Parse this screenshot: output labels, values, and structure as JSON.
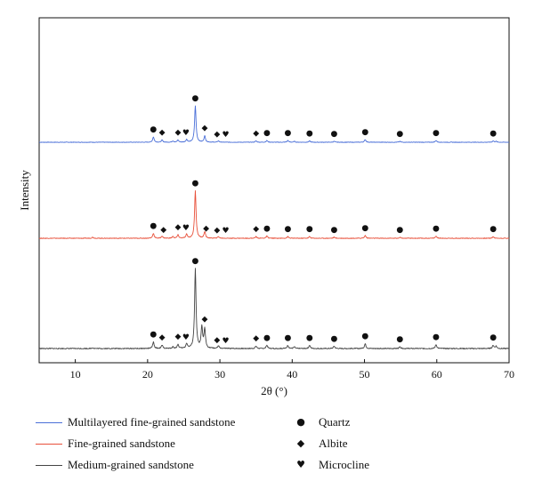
{
  "chart_data": {
    "type": "line",
    "xlabel": "2θ (°)",
    "ylabel": "Intensity",
    "xlim": [
      5,
      70
    ],
    "x_ticks": [
      10,
      20,
      30,
      40,
      50,
      60,
      70
    ],
    "y_ticks_shown": false,
    "grid": false,
    "legend_position": "bottom",
    "series": [
      {
        "name": "Multilayered fine-grained sandstone",
        "color": "#4a6fd8",
        "peaks": [
          {
            "x": 20.8,
            "h": 0.12
          },
          {
            "x": 22.0,
            "h": 0.05
          },
          {
            "x": 23.5,
            "h": 0.03
          },
          {
            "x": 24.2,
            "h": 0.05
          },
          {
            "x": 25.4,
            "h": 0.06
          },
          {
            "x": 26.6,
            "h": 0.82
          },
          {
            "x": 27.9,
            "h": 0.14
          },
          {
            "x": 29.8,
            "h": 0.03
          },
          {
            "x": 35.0,
            "h": 0.03
          },
          {
            "x": 36.5,
            "h": 0.04
          },
          {
            "x": 39.4,
            "h": 0.04
          },
          {
            "x": 40.3,
            "h": 0.02
          },
          {
            "x": 42.4,
            "h": 0.03
          },
          {
            "x": 45.8,
            "h": 0.02
          },
          {
            "x": 50.1,
            "h": 0.06
          },
          {
            "x": 54.9,
            "h": 0.02
          },
          {
            "x": 59.9,
            "h": 0.04
          },
          {
            "x": 67.8,
            "h": 0.03
          },
          {
            "x": 68.2,
            "h": 0.02
          }
        ],
        "markers": [
          {
            "x": 20.8,
            "symbol": "quartz"
          },
          {
            "x": 22.0,
            "symbol": "albite"
          },
          {
            "x": 24.2,
            "symbol": "albite"
          },
          {
            "x": 25.3,
            "symbol": "microcline"
          },
          {
            "x": 26.6,
            "symbol": "quartz"
          },
          {
            "x": 27.9,
            "symbol": "albite"
          },
          {
            "x": 29.6,
            "symbol": "albite"
          },
          {
            "x": 30.8,
            "symbol": "microcline"
          },
          {
            "x": 35.0,
            "symbol": "albite"
          },
          {
            "x": 36.5,
            "symbol": "quartz"
          },
          {
            "x": 39.4,
            "symbol": "quartz"
          },
          {
            "x": 42.4,
            "symbol": "quartz"
          },
          {
            "x": 45.8,
            "symbol": "quartz"
          },
          {
            "x": 50.1,
            "symbol": "quartz"
          },
          {
            "x": 54.9,
            "symbol": "quartz"
          },
          {
            "x": 59.9,
            "symbol": "quartz"
          },
          {
            "x": 67.8,
            "symbol": "quartz"
          }
        ]
      },
      {
        "name": "Fine-grained sandstone",
        "color": "#e8503a",
        "peaks": [
          {
            "x": 12.4,
            "h": 0.02
          },
          {
            "x": 20.8,
            "h": 0.09
          },
          {
            "x": 22.0,
            "h": 0.04
          },
          {
            "x": 23.5,
            "h": 0.03
          },
          {
            "x": 24.2,
            "h": 0.06
          },
          {
            "x": 25.4,
            "h": 0.07
          },
          {
            "x": 26.6,
            "h": 0.86
          },
          {
            "x": 27.9,
            "h": 0.12
          },
          {
            "x": 29.8,
            "h": 0.03
          },
          {
            "x": 35.0,
            "h": 0.03
          },
          {
            "x": 36.5,
            "h": 0.04
          },
          {
            "x": 39.4,
            "h": 0.03
          },
          {
            "x": 42.4,
            "h": 0.03
          },
          {
            "x": 45.8,
            "h": 0.02
          },
          {
            "x": 50.1,
            "h": 0.05
          },
          {
            "x": 54.9,
            "h": 0.02
          },
          {
            "x": 59.9,
            "h": 0.04
          },
          {
            "x": 67.8,
            "h": 0.03
          }
        ],
        "markers": [
          {
            "x": 20.8,
            "symbol": "quartz"
          },
          {
            "x": 22.2,
            "symbol": "albite"
          },
          {
            "x": 24.2,
            "symbol": "albite"
          },
          {
            "x": 25.3,
            "symbol": "microcline"
          },
          {
            "x": 26.6,
            "symbol": "quartz"
          },
          {
            "x": 28.1,
            "symbol": "albite"
          },
          {
            "x": 29.6,
            "symbol": "albite"
          },
          {
            "x": 30.8,
            "symbol": "microcline"
          },
          {
            "x": 35.0,
            "symbol": "albite"
          },
          {
            "x": 36.5,
            "symbol": "quartz"
          },
          {
            "x": 39.4,
            "symbol": "quartz"
          },
          {
            "x": 42.4,
            "symbol": "quartz"
          },
          {
            "x": 45.8,
            "symbol": "quartz"
          },
          {
            "x": 50.1,
            "symbol": "quartz"
          },
          {
            "x": 54.9,
            "symbol": "quartz"
          },
          {
            "x": 59.9,
            "symbol": "quartz"
          },
          {
            "x": 67.8,
            "symbol": "quartz"
          }
        ]
      },
      {
        "name": "Medium-grained sandstone",
        "color": "#444444",
        "peaks": [
          {
            "x": 12.4,
            "h": 0.01
          },
          {
            "x": 20.8,
            "h": 0.08
          },
          {
            "x": 22.0,
            "h": 0.04
          },
          {
            "x": 23.5,
            "h": 0.02
          },
          {
            "x": 24.2,
            "h": 0.05
          },
          {
            "x": 25.4,
            "h": 0.06
          },
          {
            "x": 26.6,
            "h": 0.99
          },
          {
            "x": 27.5,
            "h": 0.26
          },
          {
            "x": 27.9,
            "h": 0.24
          },
          {
            "x": 29.8,
            "h": 0.03
          },
          {
            "x": 35.0,
            "h": 0.03
          },
          {
            "x": 36.5,
            "h": 0.04
          },
          {
            "x": 39.4,
            "h": 0.04
          },
          {
            "x": 40.3,
            "h": 0.02
          },
          {
            "x": 42.4,
            "h": 0.04
          },
          {
            "x": 45.8,
            "h": 0.03
          },
          {
            "x": 50.1,
            "h": 0.06
          },
          {
            "x": 54.9,
            "h": 0.02
          },
          {
            "x": 59.9,
            "h": 0.05
          },
          {
            "x": 67.8,
            "h": 0.04
          },
          {
            "x": 68.2,
            "h": 0.03
          }
        ],
        "markers": [
          {
            "x": 20.8,
            "symbol": "quartz"
          },
          {
            "x": 22.0,
            "symbol": "albite"
          },
          {
            "x": 24.2,
            "symbol": "albite"
          },
          {
            "x": 25.3,
            "symbol": "microcline"
          },
          {
            "x": 26.6,
            "symbol": "quartz"
          },
          {
            "x": 27.9,
            "symbol": "albite"
          },
          {
            "x": 29.6,
            "symbol": "albite"
          },
          {
            "x": 30.8,
            "symbol": "microcline"
          },
          {
            "x": 35.0,
            "symbol": "albite"
          },
          {
            "x": 36.5,
            "symbol": "quartz"
          },
          {
            "x": 39.4,
            "symbol": "quartz"
          },
          {
            "x": 42.4,
            "symbol": "quartz"
          },
          {
            "x": 45.8,
            "symbol": "quartz"
          },
          {
            "x": 50.1,
            "symbol": "quartz"
          },
          {
            "x": 54.9,
            "symbol": "quartz"
          },
          {
            "x": 59.9,
            "symbol": "quartz"
          },
          {
            "x": 67.8,
            "symbol": "quartz"
          }
        ]
      }
    ],
    "phase_key": [
      {
        "symbol": "quartz",
        "glyph": "●",
        "label": "Quartz"
      },
      {
        "symbol": "albite",
        "glyph": "◆",
        "label": "Albite"
      },
      {
        "symbol": "microcline",
        "glyph": "♥",
        "label": "Microcline"
      }
    ]
  }
}
